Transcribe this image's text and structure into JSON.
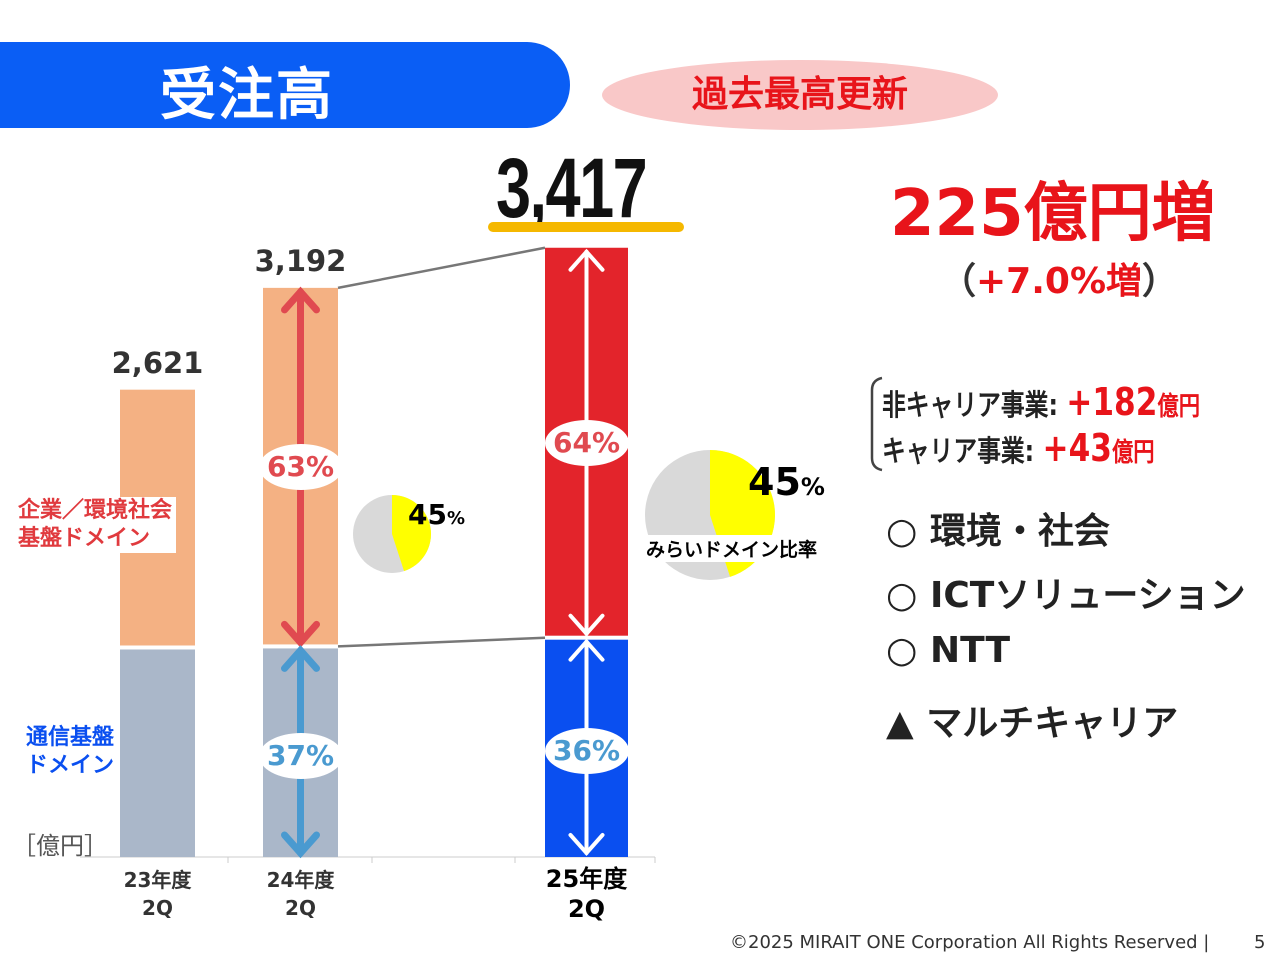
{
  "header": {
    "title": "受注高",
    "badge": "過去最高更新"
  },
  "highlight": {
    "total": "3,417",
    "increase": "225億円増",
    "increase_pct_open": "（",
    "increase_pct": "+7.0%増",
    "increase_pct_close": "）"
  },
  "breakdown": [
    {
      "label": "非キャリア事業:",
      "value": "+182",
      "unit": "億円"
    },
    {
      "label": "キャリア事業:",
      "value": "+43",
      "unit": "億円"
    }
  ],
  "items": [
    "○ 環境・社会",
    "○ ICTソリューション",
    "○ NTT",
    "▲ マルチキャリア"
  ],
  "chart_data": {
    "type": "bar",
    "stacked": true,
    "unit": "［億円］",
    "categories": [
      "23年度\n2Q",
      "24年度\n2Q",
      "25年度\n2Q"
    ],
    "totals": [
      "2,621",
      "3,192",
      "3,417"
    ],
    "total_values": [
      2621,
      3192,
      3417
    ],
    "series": [
      {
        "name": "通信基盤ドメイン",
        "values": [
          1175,
          1181,
          1230
        ],
        "pct_labels": [
          "",
          "37%",
          "36%"
        ],
        "colors": [
          "#aab7c9",
          "#aab7c9",
          "#0a4ff0"
        ]
      },
      {
        "name": "企業／環境社会基盤ドメイン",
        "values": [
          1446,
          2011,
          2187
        ],
        "pct_labels": [
          "",
          "63%",
          "64%"
        ],
        "colors": [
          "#f4b183",
          "#f4b183",
          "#e3242b"
        ]
      }
    ],
    "series_labels": {
      "lower": [
        "通信基盤",
        "ドメイン"
      ],
      "upper": [
        "企業／環境社会",
        "基盤ドメイン"
      ]
    },
    "pies": [
      {
        "value": 45,
        "label": "45",
        "unit": "%"
      },
      {
        "value": 45,
        "label": "45",
        "unit": "%",
        "caption": "みらいドメイン比率"
      }
    ],
    "colors": {
      "pie_highlight": "#ffff00",
      "pie_rest": "#d9d9d9"
    }
  },
  "footer": {
    "copyright": "©2025 MIRAIT ONE Corporation All Rights Reserved  |",
    "page": "5"
  }
}
